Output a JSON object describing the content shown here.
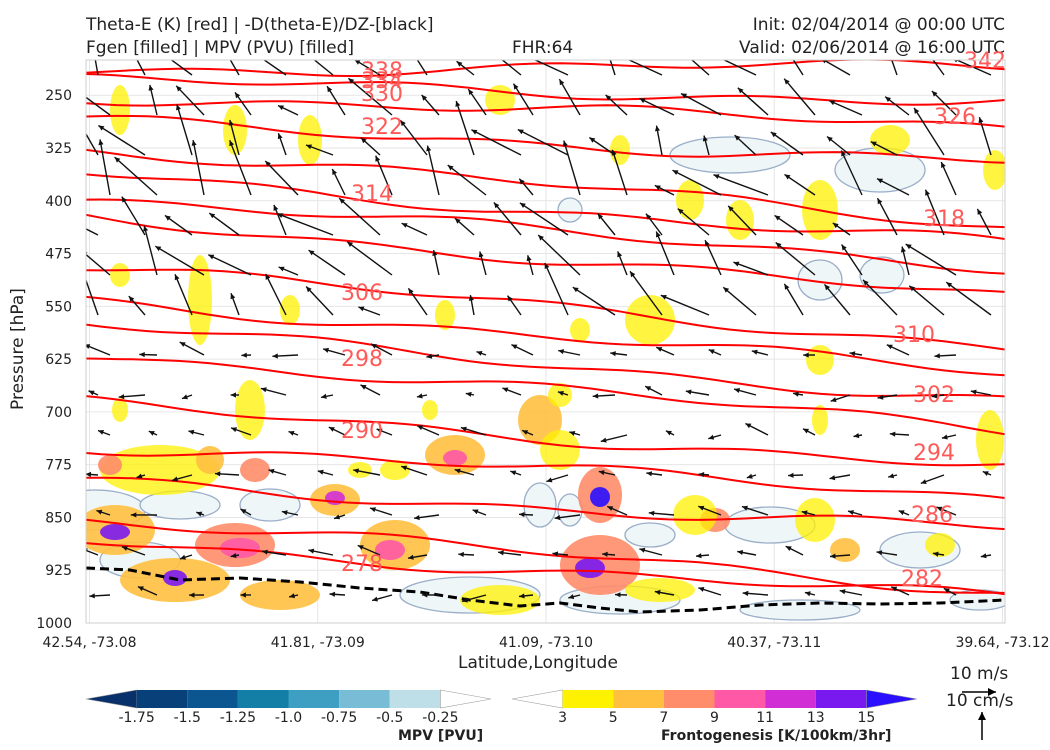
{
  "header": {
    "title_line1": "Theta-E (K) [red] | -D(theta-E)/DZ-[black]",
    "title_line2": "Fgen [filled] | MPV (PVU) [filled]",
    "fhr": "FHR:64",
    "init": "Init: 02/04/2014 @ 00:00 UTC",
    "valid": "Valid: 02/06/2014 @ 16:00 UTC"
  },
  "colors": {
    "theta_e": "#ff0000",
    "theta_e_label": "#ff5a5a",
    "wind": "#000000",
    "mpv_outline": "#9aaec8",
    "mpv_fill": "#eef6f8"
  },
  "chart_data": {
    "type": "cross-section",
    "xlabel": "Latitude,Longitude",
    "ylabel": "Pressure [hPa]",
    "x_ticks": [
      "42.54, -73.08",
      "41.81, -73.09",
      "41.09, -73.10",
      "40.37, -73.11",
      "39.64, -73.12"
    ],
    "y_ticks": [
      250,
      325,
      400,
      475,
      550,
      625,
      700,
      775,
      850,
      925,
      1000
    ],
    "ylim": [
      200,
      1000
    ],
    "theta_e_contours": [
      {
        "value": 278,
        "label": "278"
      },
      {
        "value": 282,
        "label": "282"
      },
      {
        "value": 286,
        "label": "286"
      },
      {
        "value": 290,
        "label": "290"
      },
      {
        "value": 294,
        "label": "294"
      },
      {
        "value": 298,
        "label": "298"
      },
      {
        "value": 302,
        "label": "302"
      },
      {
        "value": 306,
        "label": "306"
      },
      {
        "value": 310,
        "label": "310"
      },
      {
        "value": 314,
        "label": "314"
      },
      {
        "value": 318,
        "label": "318"
      },
      {
        "value": 322,
        "label": "322"
      },
      {
        "value": 326,
        "label": "326"
      },
      {
        "value": 330,
        "label": "330"
      },
      {
        "value": 334,
        "label": "334"
      },
      {
        "value": 338,
        "label": "338"
      },
      {
        "value": 342,
        "label": "342"
      }
    ],
    "wind_reference": {
      "horizontal": "10 m/s",
      "vertical": "10 cm/s"
    },
    "mpv_colorbar": {
      "title": "MPV [PVU]",
      "ticks": [
        "-1.75",
        "-1.5",
        "-1.25",
        "-1.0",
        "-0.75",
        "-0.5",
        "-0.25"
      ],
      "colors": [
        "#08306b",
        "#08407a",
        "#0b5590",
        "#137fa6",
        "#3e9fc2",
        "#79bcd6",
        "#bedfe8",
        "#ffffff"
      ]
    },
    "fgen_colorbar": {
      "title": "Frontogenesis [K/100km/3hr]",
      "ticks": [
        "3",
        "5",
        "7",
        "9",
        "11",
        "13",
        "15"
      ],
      "colors": [
        "#ffffff",
        "#fff200",
        "#ffc040",
        "#ff8c6a",
        "#ff58a6",
        "#d22ed6",
        "#7a18f0",
        "#2a10ff"
      ]
    }
  }
}
